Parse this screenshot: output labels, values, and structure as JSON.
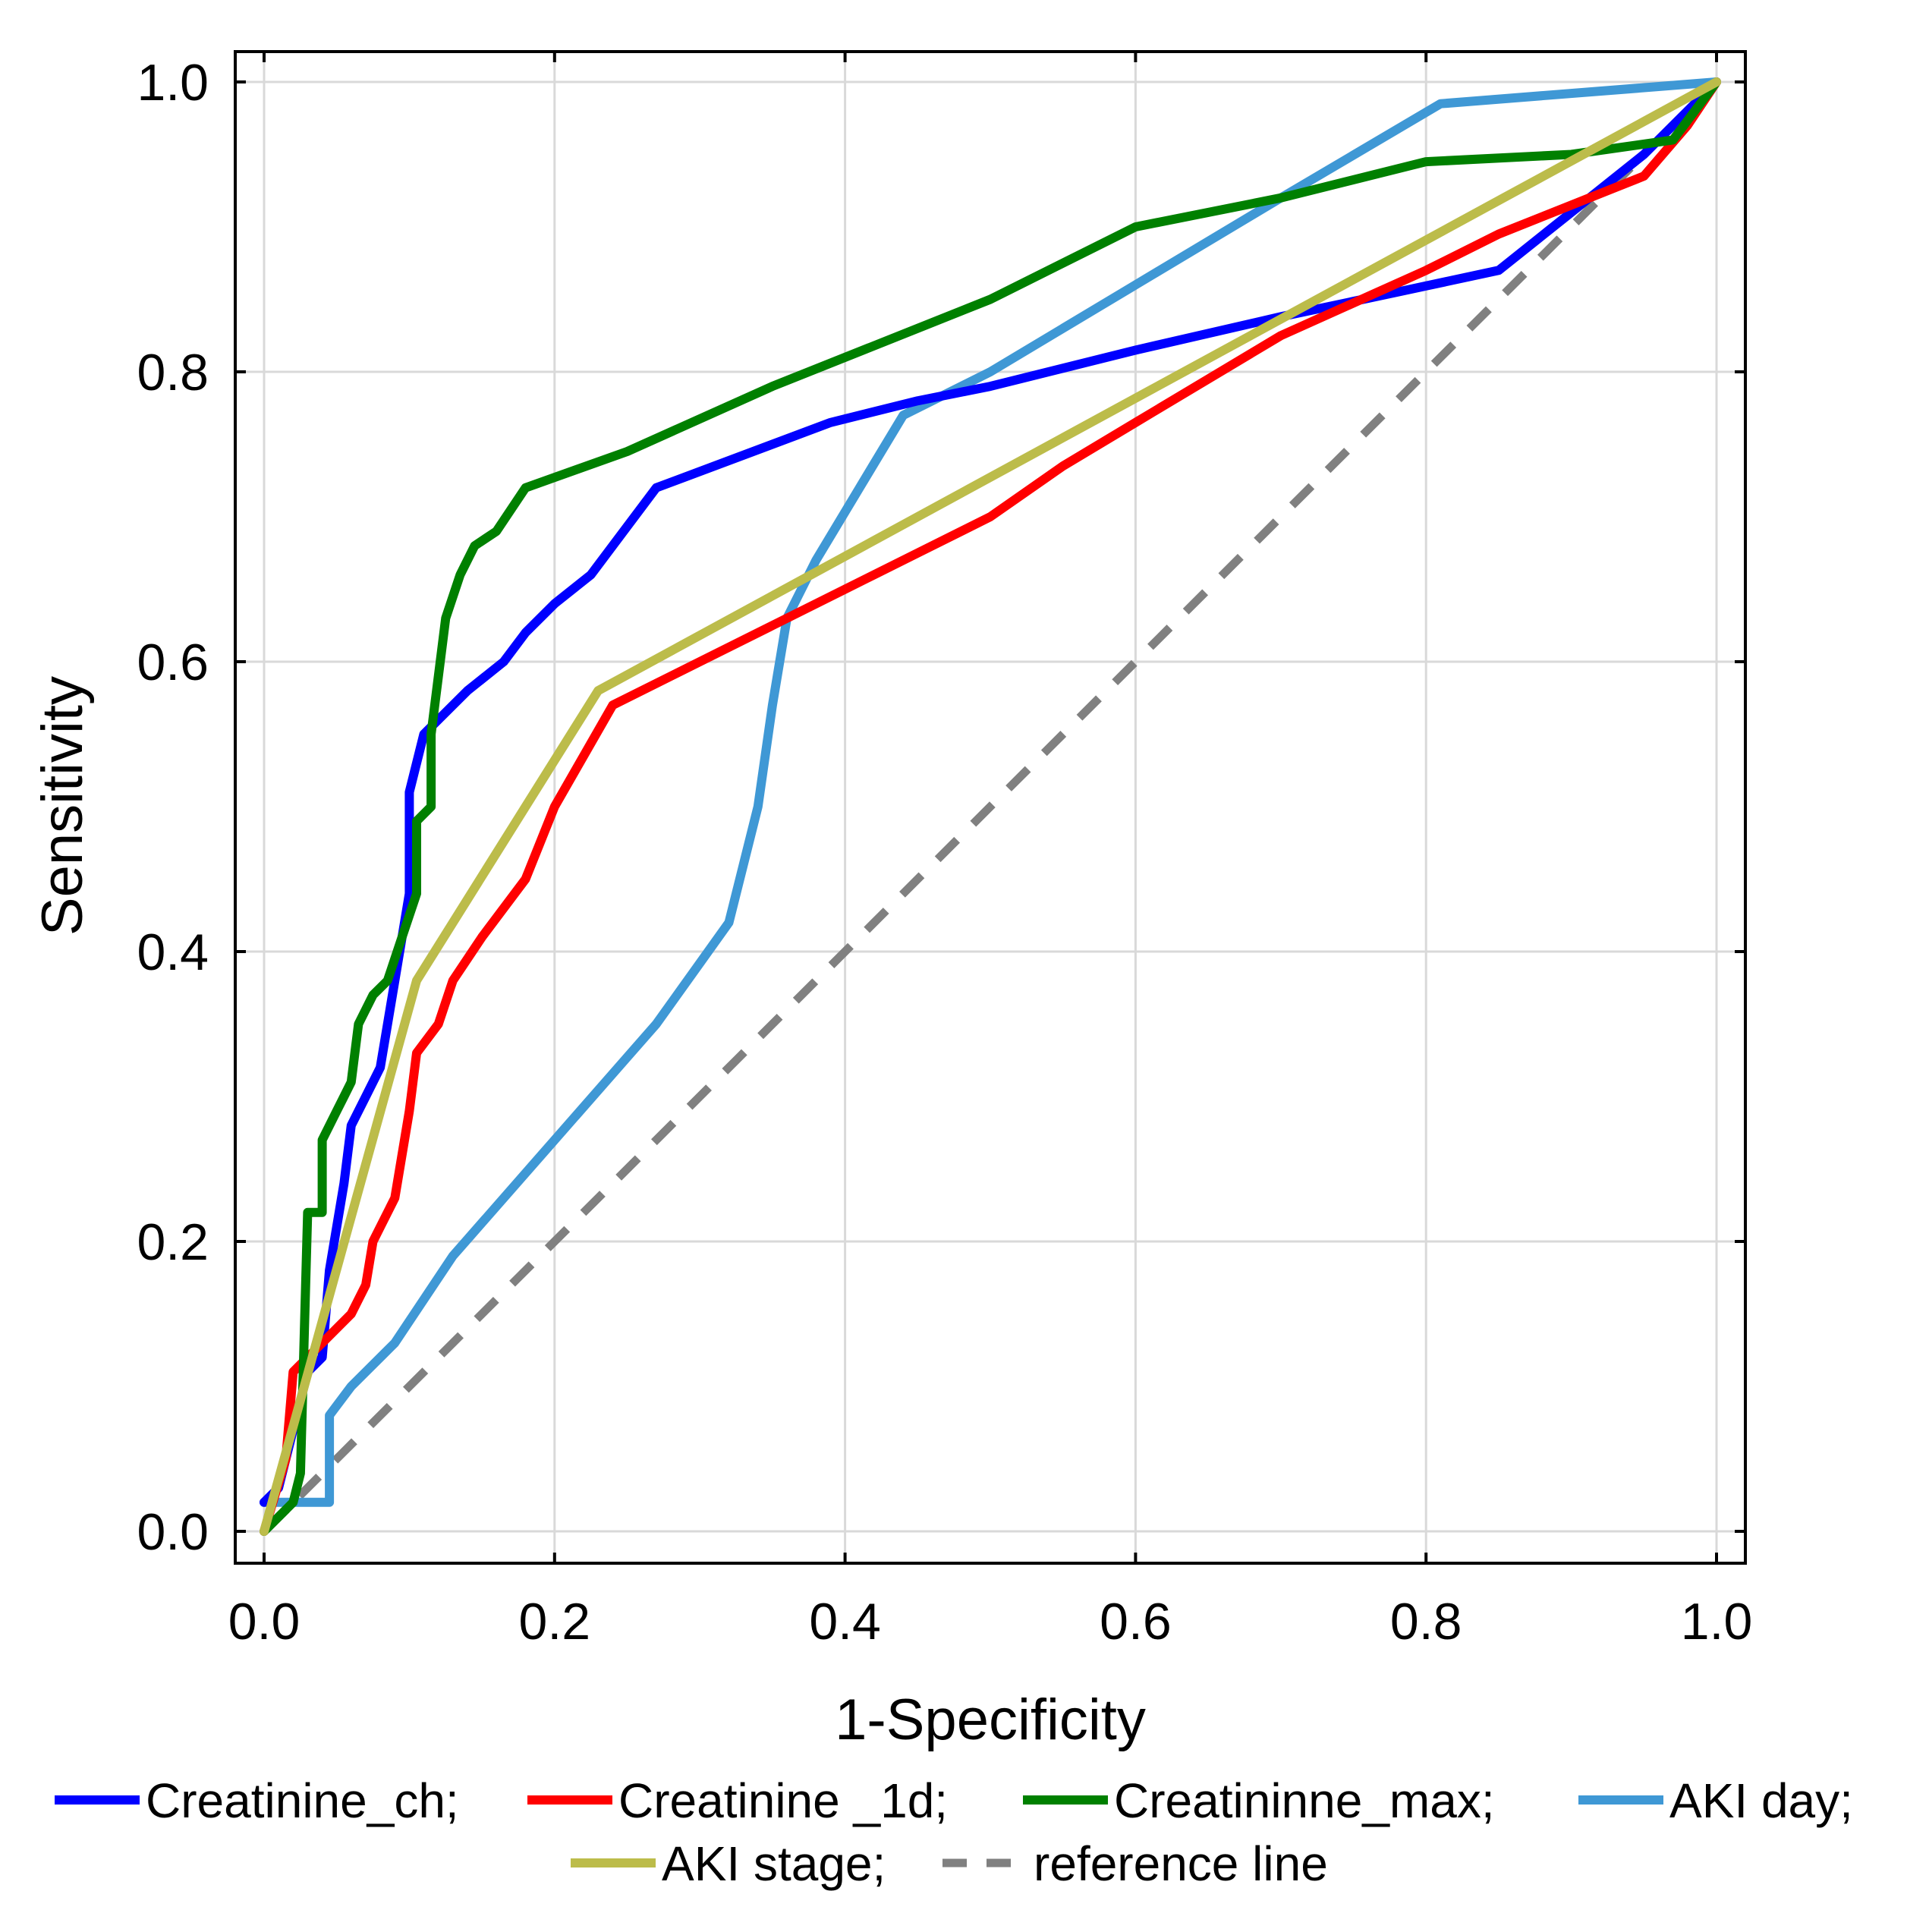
{
  "chart_data": {
    "type": "line",
    "title": "",
    "xlabel": "1-Specificity",
    "ylabel": "Sensitivity",
    "xlim": [
      0,
      1
    ],
    "ylim": [
      0,
      1
    ],
    "grid": true,
    "legend_position": "bottom",
    "x_ticks": [
      "0.0",
      "0.2",
      "0.4",
      "0.6",
      "0.8",
      "1.0"
    ],
    "y_ticks": [
      "0.0",
      "0.2",
      "0.4",
      "0.6",
      "0.8",
      "1.0"
    ],
    "series": [
      {
        "name": "Creatinine_ch;",
        "color": "#0000ff",
        "style": "solid",
        "points": [
          [
            0,
            0.02
          ],
          [
            0.01,
            0.03
          ],
          [
            0.02,
            0.07
          ],
          [
            0.03,
            0.11
          ],
          [
            0.04,
            0.12
          ],
          [
            0.045,
            0.18
          ],
          [
            0.05,
            0.21
          ],
          [
            0.055,
            0.24
          ],
          [
            0.06,
            0.28
          ],
          [
            0.07,
            0.3
          ],
          [
            0.08,
            0.32
          ],
          [
            0.09,
            0.38
          ],
          [
            0.1,
            0.44
          ],
          [
            0.1,
            0.51
          ],
          [
            0.11,
            0.55
          ],
          [
            0.12,
            0.56
          ],
          [
            0.14,
            0.58
          ],
          [
            0.165,
            0.6
          ],
          [
            0.18,
            0.62
          ],
          [
            0.2,
            0.64
          ],
          [
            0.225,
            0.66
          ],
          [
            0.27,
            0.72
          ],
          [
            0.39,
            0.765
          ],
          [
            0.45,
            0.78
          ],
          [
            0.5,
            0.79
          ],
          [
            0.6,
            0.815
          ],
          [
            0.7,
            0.838
          ],
          [
            0.78,
            0.855
          ],
          [
            0.85,
            0.87
          ],
          [
            0.9,
            0.91
          ],
          [
            0.95,
            0.95
          ],
          [
            1.0,
            1.0
          ]
        ]
      },
      {
        "name": "Creatinine _1d;",
        "color": "#ff0000",
        "style": "solid",
        "points": [
          [
            0,
            0.0
          ],
          [
            0.015,
            0.05
          ],
          [
            0.02,
            0.11
          ],
          [
            0.03,
            0.12
          ],
          [
            0.04,
            0.13
          ],
          [
            0.05,
            0.14
          ],
          [
            0.06,
            0.15
          ],
          [
            0.07,
            0.17
          ],
          [
            0.075,
            0.2
          ],
          [
            0.09,
            0.23
          ],
          [
            0.1,
            0.29
          ],
          [
            0.105,
            0.33
          ],
          [
            0.12,
            0.35
          ],
          [
            0.13,
            0.38
          ],
          [
            0.15,
            0.41
          ],
          [
            0.18,
            0.45
          ],
          [
            0.2,
            0.5
          ],
          [
            0.24,
            0.57
          ],
          [
            0.3,
            0.6
          ],
          [
            0.35,
            0.625
          ],
          [
            0.4,
            0.65
          ],
          [
            0.45,
            0.675
          ],
          [
            0.5,
            0.7
          ],
          [
            0.55,
            0.735
          ],
          [
            0.6,
            0.765
          ],
          [
            0.7,
            0.825
          ],
          [
            0.8,
            0.87
          ],
          [
            0.85,
            0.895
          ],
          [
            0.9,
            0.915
          ],
          [
            0.95,
            0.935
          ],
          [
            0.98,
            0.97
          ],
          [
            1.0,
            1.0
          ]
        ]
      },
      {
        "name": "Creatininne_max;",
        "color": "#008000",
        "style": "solid",
        "points": [
          [
            0,
            0.0
          ],
          [
            0.02,
            0.02
          ],
          [
            0.025,
            0.04
          ],
          [
            0.03,
            0.22
          ],
          [
            0.04,
            0.22
          ],
          [
            0.04,
            0.27
          ],
          [
            0.05,
            0.29
          ],
          [
            0.055,
            0.3
          ],
          [
            0.06,
            0.31
          ],
          [
            0.065,
            0.35
          ],
          [
            0.075,
            0.37
          ],
          [
            0.085,
            0.38
          ],
          [
            0.095,
            0.41
          ],
          [
            0.105,
            0.44
          ],
          [
            0.105,
            0.49
          ],
          [
            0.115,
            0.5
          ],
          [
            0.115,
            0.55
          ],
          [
            0.125,
            0.63
          ],
          [
            0.135,
            0.66
          ],
          [
            0.145,
            0.68
          ],
          [
            0.16,
            0.69
          ],
          [
            0.18,
            0.72
          ],
          [
            0.25,
            0.745
          ],
          [
            0.35,
            0.79
          ],
          [
            0.5,
            0.85
          ],
          [
            0.6,
            0.9
          ],
          [
            0.7,
            0.92
          ],
          [
            0.8,
            0.945
          ],
          [
            0.9,
            0.95
          ],
          [
            0.97,
            0.96
          ],
          [
            1.0,
            1.0
          ]
        ]
      },
      {
        "name": "AKI day;",
        "color": "#3f98d5",
        "style": "solid",
        "points": [
          [
            0,
            0.02
          ],
          [
            0.045,
            0.02
          ],
          [
            0.045,
            0.08
          ],
          [
            0.06,
            0.1
          ],
          [
            0.07,
            0.11
          ],
          [
            0.09,
            0.13
          ],
          [
            0.13,
            0.19
          ],
          [
            0.2,
            0.27
          ],
          [
            0.27,
            0.35
          ],
          [
            0.32,
            0.42
          ],
          [
            0.34,
            0.5
          ],
          [
            0.35,
            0.57
          ],
          [
            0.36,
            0.63
          ],
          [
            0.38,
            0.67
          ],
          [
            0.41,
            0.72
          ],
          [
            0.44,
            0.77
          ],
          [
            0.5,
            0.8
          ],
          [
            0.6,
            0.86
          ],
          [
            0.7,
            0.92
          ],
          [
            0.81,
            0.985
          ],
          [
            1.0,
            1.0
          ]
        ]
      },
      {
        "name": "AKI stage;",
        "color": "#bcbc4a",
        "style": "solid",
        "points": [
          [
            0,
            0.0
          ],
          [
            0.105,
            0.38
          ],
          [
            0.23,
            0.58
          ],
          [
            1.0,
            1.0
          ]
        ]
      },
      {
        "name": "reference line",
        "color": "#808080",
        "style": "dashed",
        "points": [
          [
            0,
            0
          ],
          [
            1,
            1
          ]
        ]
      }
    ]
  }
}
